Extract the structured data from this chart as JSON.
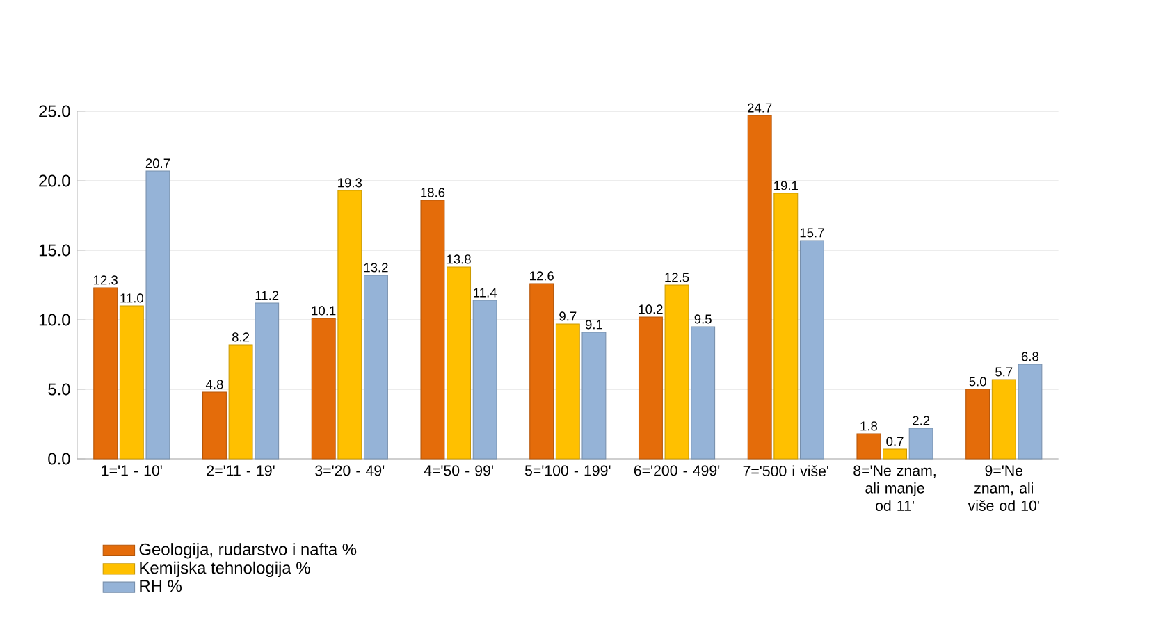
{
  "chart_data": {
    "type": "bar",
    "categories": [
      "1='1 - 10'",
      "2='11 - 19'",
      "3='20 - 49'",
      "4='50 - 99'",
      "5='100 - 199'",
      "6='200 - 499'",
      "7='500 i više'",
      "8='Ne znam, ali manje od 11'",
      "9='Ne znam, ali više od 10'"
    ],
    "series": [
      {
        "name": "Geologija, rudarstvo i nafta %",
        "color": "#e46c0a",
        "values": [
          12.3,
          4.8,
          10.1,
          18.6,
          12.6,
          10.2,
          24.7,
          1.8,
          5.0
        ],
        "value_labels": [
          "12.3",
          "4.8",
          "10.1",
          "18.6",
          "12.6",
          "10.2",
          "24.7",
          "1.8",
          "5.0"
        ]
      },
      {
        "name": "Kemijska tehnologija %",
        "color": "#ffc000",
        "values": [
          11.0,
          8.2,
          19.3,
          13.8,
          9.7,
          12.5,
          19.1,
          0.7,
          5.7
        ],
        "value_labels": [
          "11.0",
          "8.2",
          "19.3",
          "13.8",
          "9.7",
          "12.5",
          "19.1",
          "0.7",
          "5.7"
        ]
      },
      {
        "name": "RH %",
        "color": "#95b3d7",
        "values": [
          20.7,
          11.2,
          13.2,
          11.4,
          9.1,
          9.5,
          15.7,
          2.2,
          6.8
        ],
        "value_labels": [
          "20.7",
          "11.2",
          "13.2",
          "11.4",
          "9.1",
          "9.5",
          "15.7",
          "2.2",
          "6.8"
        ]
      }
    ],
    "ylim": [
      0,
      25
    ],
    "yticks": [
      {
        "value": 0,
        "label": "0.0"
      },
      {
        "value": 5,
        "label": "5.0"
      },
      {
        "value": 10,
        "label": "10.0"
      },
      {
        "value": 15,
        "label": "15.0"
      },
      {
        "value": 20,
        "label": "20.0"
      },
      {
        "value": 25,
        "label": "25.0"
      }
    ],
    "grid": "y",
    "legend": "bottom left"
  }
}
